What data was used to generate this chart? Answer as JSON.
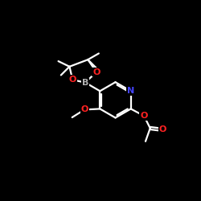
{
  "background_color": "#000000",
  "bond_color": "#ffffff",
  "atom_colors": {
    "B": "#b0b0b0",
    "N": "#4444ff",
    "O": "#ff2222",
    "C": "#ffffff"
  },
  "figsize": [
    2.5,
    2.5
  ],
  "dpi": 100,
  "xlim": [
    0,
    10
  ],
  "ylim": [
    0,
    10
  ]
}
